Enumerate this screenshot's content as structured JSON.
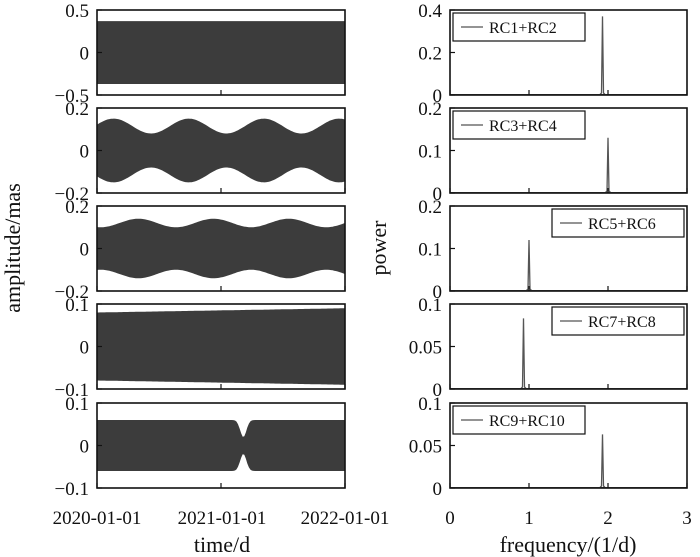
{
  "colors": {
    "fill": "#3c3c3c",
    "axis": "#111111",
    "spectrum": "#555555"
  },
  "chart_data": [
    {
      "type": "area",
      "panel": "left-1",
      "ylim": [
        -0.5,
        0.5
      ],
      "yticks": [
        "0.5",
        "0",
        "−0.5"
      ],
      "envelope": {
        "amplitude": 0.37
      },
      "xlabel": "",
      "ylabel": ""
    },
    {
      "type": "area",
      "panel": "left-2",
      "ylim": [
        -0.2,
        0.2
      ],
      "yticks": [
        "0.2",
        "0",
        "−0.2"
      ],
      "envelope": {
        "max_amplitude": 0.15,
        "min_amplitude": 0.08
      }
    },
    {
      "type": "area",
      "panel": "left-3",
      "ylim": [
        -0.2,
        0.2
      ],
      "yticks": [
        "0.2",
        "0",
        "−0.2"
      ],
      "envelope": {
        "max_amplitude": 0.14,
        "min_amplitude": 0.1
      }
    },
    {
      "type": "area",
      "panel": "left-4",
      "ylim": [
        -0.1,
        0.1
      ],
      "yticks": [
        "0.1",
        "0",
        "−0.1"
      ],
      "envelope": {
        "amplitude_start": 0.08,
        "amplitude_end": 0.09
      }
    },
    {
      "type": "area",
      "panel": "left-5",
      "ylim": [
        -0.1,
        0.1
      ],
      "yticks": [
        "0.1",
        "0",
        "−0.1"
      ],
      "envelope": {
        "amplitude": 0.06,
        "dip_amplitude": 0.02
      }
    },
    {
      "type": "line",
      "panel": "right-1",
      "legend": "RC1+RC2",
      "legend_placement": "top-left",
      "xlim": [
        0,
        3
      ],
      "ylim": [
        0,
        0.4
      ],
      "yticks": [
        "0.4",
        "0.2",
        "0"
      ],
      "peaks": [
        {
          "x": 1.93,
          "y": 0.37
        }
      ]
    },
    {
      "type": "line",
      "panel": "right-2",
      "legend": "RC3+RC4",
      "legend_placement": "top-left",
      "xlim": [
        0,
        3
      ],
      "ylim": [
        0,
        0.2
      ],
      "yticks": [
        "0.2",
        "0.1",
        "0"
      ],
      "peaks": [
        {
          "x": 2.0,
          "y": 0.13
        }
      ]
    },
    {
      "type": "line",
      "panel": "right-3",
      "legend": "RC5+RC6",
      "legend_placement": "top-right",
      "xlim": [
        0,
        3
      ],
      "ylim": [
        0,
        0.2
      ],
      "yticks": [
        "0.2",
        "0.1",
        "0"
      ],
      "peaks": [
        {
          "x": 1.0,
          "y": 0.12
        }
      ]
    },
    {
      "type": "line",
      "panel": "right-4",
      "legend": "RC7+RC8",
      "legend_placement": "top-right",
      "xlim": [
        0,
        3
      ],
      "ylim": [
        0,
        0.1
      ],
      "yticks": [
        "0.1",
        "0.05",
        "0"
      ],
      "peaks": [
        {
          "x": 0.93,
          "y": 0.083
        }
      ]
    },
    {
      "type": "line",
      "panel": "right-5",
      "legend": "RC9+RC10",
      "legend_placement": "top-left",
      "xlim": [
        0,
        3
      ],
      "ylim": [
        0,
        0.1
      ],
      "yticks": [
        "0.1",
        "0.05",
        "0"
      ],
      "peaks": [
        {
          "x": 1.93,
          "y": 0.063
        }
      ]
    }
  ],
  "left": {
    "ylabel": "amplitude/mas",
    "xlabel": "time/d",
    "xticks": [
      "2020-01-01",
      "2021-01-01",
      "2022-01-01"
    ]
  },
  "right": {
    "ylabel": "power",
    "xlabel": "frequency/(1/d)",
    "xticks": [
      "0",
      "1",
      "2",
      "3"
    ]
  }
}
